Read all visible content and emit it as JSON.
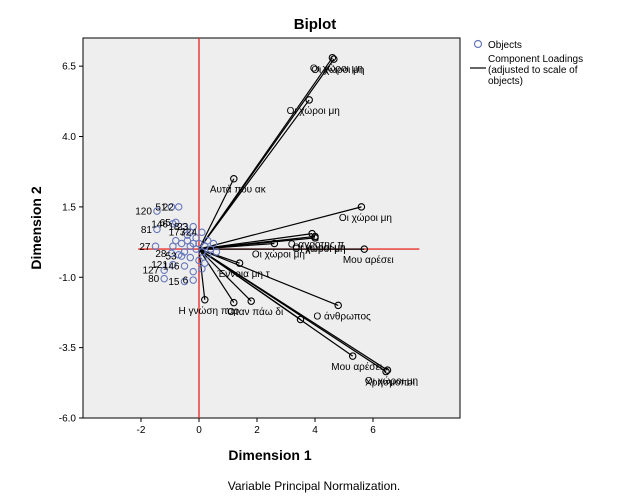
{
  "chart_data": {
    "type": "scatter",
    "title": "Biplot",
    "xlabel": "Dimension 1",
    "ylabel": "Dimension 2",
    "footnote": "Variable Principal Normalization.",
    "xlim": [
      -4.0,
      9.0
    ],
    "ylim": [
      -6.0,
      7.5
    ],
    "x_ticks": [
      -2,
      0,
      2,
      4,
      6
    ],
    "y_ticks": [
      -6.0,
      -3.5,
      -1.0,
      1.5,
      4.0,
      6.5
    ],
    "y_tick_labels": [
      "-6.0",
      "-3.5",
      "-1.0",
      "1.5",
      "4.0",
      "6.5"
    ],
    "grid": false,
    "reference_lines": {
      "x": 0,
      "y": 0,
      "color": "#e8302a"
    },
    "legend": {
      "placement": "right",
      "entries": [
        {
          "marker": "circle",
          "label": "Objects"
        },
        {
          "marker": "line",
          "label_lines": [
            "Component Loadings",
            "(adjusted to scale of",
            "objects)"
          ]
        }
      ]
    },
    "colors": {
      "plot_bg": "#eeeeee",
      "object_marker": "#6677bb",
      "loading_line": "#000000",
      "reference": "#e8302a"
    },
    "loadings": [
      {
        "label": "Οι χώροι μη",
        "x": 4.6,
        "y": 6.8
      },
      {
        "label": "Οι χώροι μη",
        "x": 4.65,
        "y": 6.75
      },
      {
        "label": "Οι χώροι μη",
        "x": 3.8,
        "y": 5.3
      },
      {
        "label": "Αυτά που ακ",
        "x": 1.2,
        "y": 2.5
      },
      {
        "label": "Οι χώροι μη",
        "x": 5.6,
        "y": 1.5
      },
      {
        "label": "Ο αγρότης π",
        "x": 3.9,
        "y": 0.55
      },
      {
        "label": "Οι χώροι μη",
        "x": 4.0,
        "y": 0.45
      },
      {
        "label": "Οι χώροι μη",
        "x": 4.0,
        "y": 0.4
      },
      {
        "label": "Οι χώροι μη",
        "x": 2.6,
        "y": 0.2
      },
      {
        "label": "Μου αρέσει",
        "x": 5.7,
        "y": 0.0
      },
      {
        "label": "Έννοια μη τ",
        "x": 1.4,
        "y": -0.5
      },
      {
        "label": "Ο άνθρωπος",
        "x": 4.8,
        "y": -2.0
      },
      {
        "label": "Όταν πάω δι",
        "x": 1.8,
        "y": -1.85
      },
      {
        "label": "",
        "x": 1.2,
        "y": -1.9
      },
      {
        "label": "Η γνώση παρ",
        "x": 0.2,
        "y": -1.8
      },
      {
        "label": "",
        "x": 3.5,
        "y": -2.5
      },
      {
        "label": "Μου αρέσει",
        "x": 5.3,
        "y": -3.8
      },
      {
        "label": "Οι χώροι μη",
        "x": 6.5,
        "y": -4.3
      },
      {
        "label": "Χρησμοποι",
        "x": 6.45,
        "y": -4.35
      }
    ],
    "objects": [
      {
        "label": "120",
        "x": -1.45,
        "y": 1.35
      },
      {
        "label": "81",
        "x": -1.45,
        "y": 0.7
      },
      {
        "label": "27",
        "x": -1.5,
        "y": 0.1
      },
      {
        "label": "127",
        "x": -1.2,
        "y": -0.75
      },
      {
        "label": "80",
        "x": -1.2,
        "y": -1.05
      },
      {
        "label": "51",
        "x": -0.95,
        "y": 1.5
      },
      {
        "label": "22",
        "x": -0.7,
        "y": 1.5
      },
      {
        "label": "146",
        "x": -0.9,
        "y": 0.9
      },
      {
        "label": "65",
        "x": -0.8,
        "y": 0.95
      },
      {
        "label": "18",
        "x": -0.5,
        "y": 0.8
      },
      {
        "label": "23",
        "x": -0.2,
        "y": 0.8
      },
      {
        "label": "173",
        "x": -0.3,
        "y": 0.6
      },
      {
        "label": "724",
        "x": 0.1,
        "y": 0.6
      },
      {
        "label": "28",
        "x": -0.95,
        "y": -0.15
      },
      {
        "label": "53",
        "x": -0.6,
        "y": -0.25
      },
      {
        "label": "121",
        "x": -0.9,
        "y": -0.55
      },
      {
        "label": "146",
        "x": -0.5,
        "y": -0.6
      },
      {
        "label": "15",
        "x": -0.5,
        "y": -1.15
      },
      {
        "label": "6",
        "x": -0.2,
        "y": -1.1
      },
      {
        "label": "",
        "x": -0.8,
        "y": 0.3
      },
      {
        "label": "",
        "x": -0.6,
        "y": 0.2
      },
      {
        "label": "",
        "x": -0.4,
        "y": 0.3
      },
      {
        "label": "",
        "x": -0.3,
        "y": 0.1
      },
      {
        "label": "",
        "x": -0.2,
        "y": 0.2
      },
      {
        "label": "",
        "x": -0.1,
        "y": 0.0
      },
      {
        "label": "",
        "x": 0.0,
        "y": 0.2
      },
      {
        "label": "",
        "x": 0.1,
        "y": -0.1
      },
      {
        "label": "",
        "x": 0.2,
        "y": 0.1
      },
      {
        "label": "",
        "x": 0.3,
        "y": -0.2
      },
      {
        "label": "",
        "x": 0.4,
        "y": 0.0
      },
      {
        "label": "",
        "x": 0.5,
        "y": 0.2
      },
      {
        "label": "",
        "x": 0.6,
        "y": -0.1
      },
      {
        "label": "",
        "x": -0.5,
        "y": -0.1
      },
      {
        "label": "",
        "x": -0.3,
        "y": -0.3
      },
      {
        "label": "",
        "x": -0.7,
        "y": -0.2
      },
      {
        "label": "",
        "x": -0.9,
        "y": 0.1
      },
      {
        "label": "",
        "x": 0.0,
        "y": -0.4
      },
      {
        "label": "",
        "x": 0.2,
        "y": -0.5
      },
      {
        "label": "",
        "x": -0.1,
        "y": 0.4
      },
      {
        "label": "",
        "x": 0.3,
        "y": 0.3
      },
      {
        "label": "",
        "x": -0.4,
        "y": 0.5
      },
      {
        "label": "",
        "x": 0.1,
        "y": -0.7
      },
      {
        "label": "",
        "x": -0.2,
        "y": -0.8
      }
    ]
  }
}
